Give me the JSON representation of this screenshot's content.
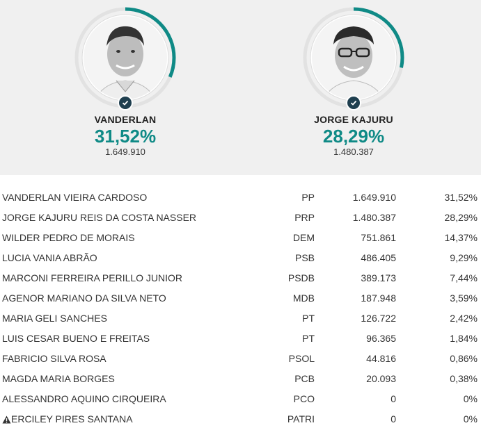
{
  "colors": {
    "accent": "#0f8a86",
    "check_badge": "#1f3f4f",
    "ring_track": "#e2e2e2",
    "header_bg": "#f0f0f0"
  },
  "leaders": [
    {
      "name": "VANDERLAN",
      "percent": "31,52%",
      "votes": "1.649.910",
      "share": 0.3152,
      "badge_icon": "check-icon"
    },
    {
      "name": "JORGE KAJURU",
      "percent": "28,29%",
      "votes": "1.480.387",
      "share": 0.2829,
      "badge_icon": "check-icon"
    }
  ],
  "results": [
    {
      "name": "VANDERLAN VIEIRA CARDOSO",
      "party": "PP",
      "votes": "1.649.910",
      "percent": "31,52%"
    },
    {
      "name": "JORGE KAJURU REIS DA COSTA NASSER",
      "party": "PRP",
      "votes": "1.480.387",
      "percent": "28,29%"
    },
    {
      "name": "WILDER PEDRO DE MORAIS",
      "party": "DEM",
      "votes": "751.861",
      "percent": "14,37%"
    },
    {
      "name": "LUCIA VANIA ABRÃO",
      "party": "PSB",
      "votes": "486.405",
      "percent": "9,29%"
    },
    {
      "name": "MARCONI FERREIRA PERILLO JUNIOR",
      "party": "PSDB",
      "votes": "389.173",
      "percent": "7,44%"
    },
    {
      "name": "AGENOR MARIANO DA SILVA NETO",
      "party": "MDB",
      "votes": "187.948",
      "percent": "3,59%"
    },
    {
      "name": "MARIA GELI SANCHES",
      "party": "PT",
      "votes": "126.722",
      "percent": "2,42%"
    },
    {
      "name": "LUIS CESAR BUENO E FREITAS",
      "party": "PT",
      "votes": "96.365",
      "percent": "1,84%"
    },
    {
      "name": "FABRICIO SILVA ROSA",
      "party": "PSOL",
      "votes": "44.816",
      "percent": "0,86%"
    },
    {
      "name": "MAGDA MARIA BORGES",
      "party": "PCB",
      "votes": "20.093",
      "percent": "0,38%"
    },
    {
      "name": "ALESSANDRO AQUINO CIRQUEIRA",
      "party": "PCO",
      "votes": "0",
      "percent": "0%"
    },
    {
      "name": "ERCILEY PIRES SANTANA",
      "party": "PATRI",
      "votes": "0",
      "percent": "0%",
      "icon": "warning-icon"
    }
  ]
}
